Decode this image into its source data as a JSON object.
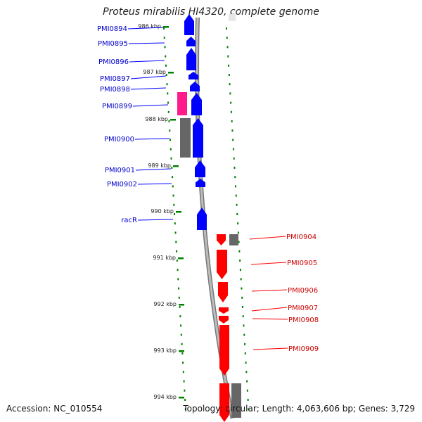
{
  "title": "Proteus mirabilis HI4320, complete genome",
  "footer": {
    "accession": "Accession: NC_010554",
    "topology": "Topology: circular; Length: 4,063,606 bp; Genes: 3,729"
  },
  "colors": {
    "forward_cds": "#0000ff",
    "reverse_cds": "#ff0000",
    "rna": "#ff1a8c",
    "other_feature": "#666666",
    "tick": "#008000",
    "backbone": "#999999",
    "forward_label": "#0000cc",
    "reverse_label": "#cc0000"
  },
  "ticks": [
    {
      "label": "986 kbp"
    },
    {
      "label": "987 kbp"
    },
    {
      "label": "988 kbp"
    },
    {
      "label": "989 kbp"
    },
    {
      "label": "990 kbp"
    },
    {
      "label": "991 kbp"
    },
    {
      "label": "992 kbp"
    },
    {
      "label": "993 kbp"
    },
    {
      "label": "994 kbp"
    }
  ],
  "forward_genes": [
    {
      "label": "PMI0894"
    },
    {
      "label": "PMI0895"
    },
    {
      "label": "PMI0896"
    },
    {
      "label": "PMI0897"
    },
    {
      "label": "PMI0898"
    },
    {
      "label": "PMI0899"
    },
    {
      "label": "PMI0900"
    },
    {
      "label": "PMI0901"
    },
    {
      "label": "PMI0902"
    },
    {
      "label": "racR"
    }
  ],
  "reverse_genes": [
    {
      "label": "PMI0904"
    },
    {
      "label": "PMI0905"
    },
    {
      "label": "PMI0906"
    },
    {
      "label": "PMI0907"
    },
    {
      "label": "PMI0908"
    },
    {
      "label": "PMI0909"
    }
  ]
}
